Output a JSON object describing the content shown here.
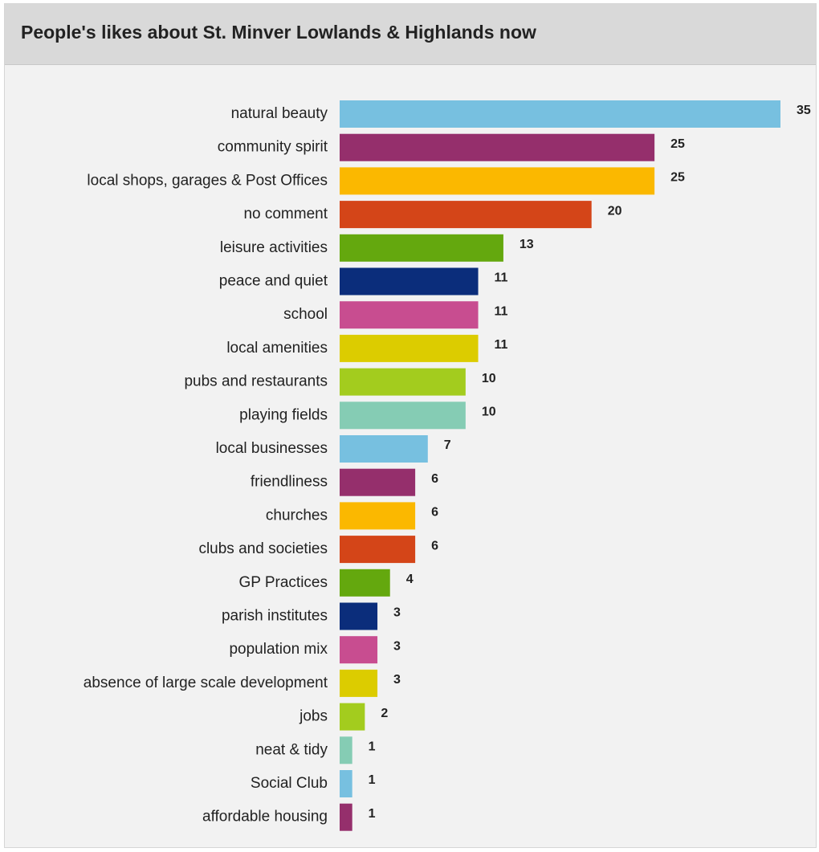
{
  "chart_data": {
    "type": "bar",
    "orientation": "horizontal",
    "title": "People's likes about St. Minver Lowlands & Highlands now",
    "categories": [
      "natural beauty",
      "community spirit",
      "local shops, garages & Post Offices",
      "no comment",
      "leisure activities",
      "peace and quiet",
      "school",
      "local amenities",
      "pubs and restaurants",
      "playing fields",
      "local businesses",
      "friendliness",
      "churches",
      "clubs and societies",
      "GP Practices",
      "parish institutes",
      "population mix",
      "absence of large scale development",
      "jobs",
      "neat & tidy",
      "Social Club",
      "affordable housing"
    ],
    "values": [
      35,
      25,
      25,
      20,
      13,
      11,
      11,
      11,
      10,
      10,
      7,
      6,
      6,
      6,
      4,
      3,
      3,
      3,
      2,
      1,
      1,
      1
    ],
    "data_labels": [
      "35",
      "25",
      "25",
      "20",
      "13",
      "11",
      "11",
      "11",
      "10",
      "10",
      "7",
      "6",
      "6",
      "6",
      "4",
      "3",
      "3",
      "3",
      "2",
      "1",
      "1",
      "1"
    ],
    "palette": [
      "#77c0e0",
      "#952f6c",
      "#fbb800",
      "#d44518",
      "#64a80e",
      "#0b2d7b",
      "#c84d90",
      "#dccc00",
      "#a3cc1e",
      "#85ccb4"
    ],
    "xlim": [
      0,
      35
    ],
    "xlabel": "",
    "ylabel": "",
    "grid": false,
    "legend": "none"
  }
}
